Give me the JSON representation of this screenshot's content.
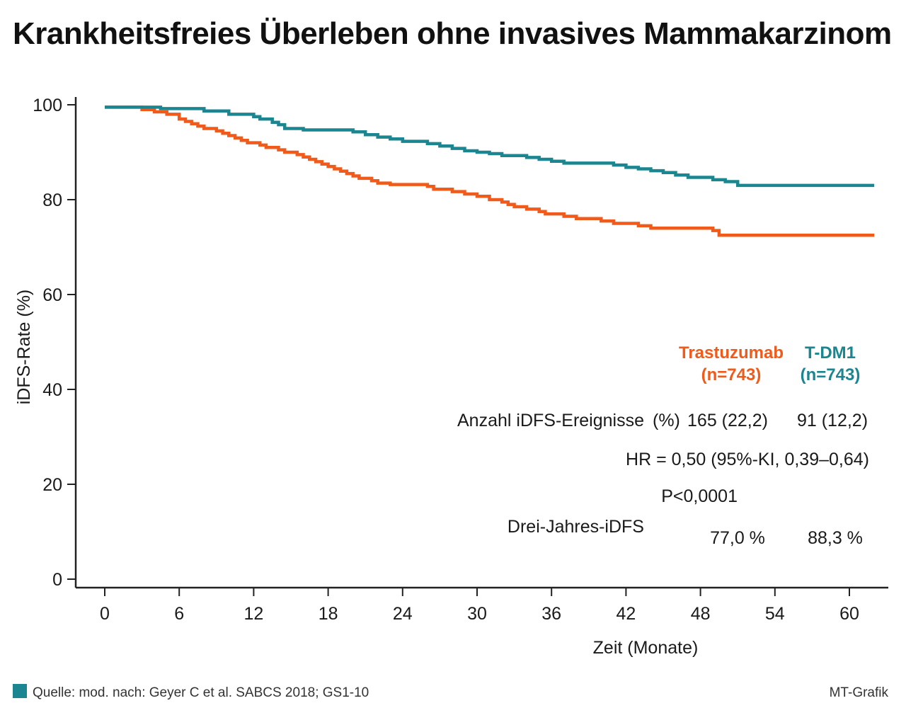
{
  "page": {
    "title": "Krankheitsfreies Überleben ohne invasives Mammakarzinom"
  },
  "chart_data": {
    "type": "line",
    "title": "Krankheitsfreies Überleben ohne invasives Mammakarzinom",
    "xlabel": "Zeit (Monate)",
    "ylabel": "iDFS-Rate (%)",
    "xlim": [
      0,
      62
    ],
    "ylim": [
      0,
      100
    ],
    "xticks": [
      0,
      6,
      12,
      18,
      24,
      30,
      36,
      42,
      48,
      54,
      60
    ],
    "yticks": [
      0,
      20,
      40,
      60,
      80,
      100
    ],
    "step": true,
    "series": [
      {
        "name": "Trastuzumab",
        "n_label": "(n=743)",
        "color": "#f05a1a",
        "points": [
          [
            0,
            99.5
          ],
          [
            3,
            99.5
          ],
          [
            3,
            99
          ],
          [
            4,
            99
          ],
          [
            4,
            98.5
          ],
          [
            5,
            98.5
          ],
          [
            5,
            98
          ],
          [
            6,
            98
          ],
          [
            6,
            97
          ],
          [
            6.5,
            97
          ],
          [
            6.5,
            96.5
          ],
          [
            7,
            96.5
          ],
          [
            7,
            96
          ],
          [
            7.5,
            96
          ],
          [
            7.5,
            95.5
          ],
          [
            8,
            95.5
          ],
          [
            8,
            95
          ],
          [
            9,
            95
          ],
          [
            9,
            94.5
          ],
          [
            9.5,
            94.5
          ],
          [
            9.5,
            94
          ],
          [
            10,
            94
          ],
          [
            10,
            93.5
          ],
          [
            10.5,
            93.5
          ],
          [
            10.5,
            93
          ],
          [
            11,
            93
          ],
          [
            11,
            92.5
          ],
          [
            11.5,
            92.5
          ],
          [
            11.5,
            92
          ],
          [
            12.5,
            92
          ],
          [
            12.5,
            91.5
          ],
          [
            13,
            91.5
          ],
          [
            13,
            91
          ],
          [
            14,
            91
          ],
          [
            14,
            90.5
          ],
          [
            14.5,
            90.5
          ],
          [
            14.5,
            90
          ],
          [
            15.5,
            90
          ],
          [
            15.5,
            89.5
          ],
          [
            16,
            89.5
          ],
          [
            16,
            89
          ],
          [
            16.5,
            89
          ],
          [
            16.5,
            88.5
          ],
          [
            17,
            88.5
          ],
          [
            17,
            88
          ],
          [
            17.5,
            88
          ],
          [
            17.5,
            87.5
          ],
          [
            18,
            87.5
          ],
          [
            18,
            87
          ],
          [
            18.5,
            87
          ],
          [
            18.5,
            86.5
          ],
          [
            19,
            86.5
          ],
          [
            19,
            86
          ],
          [
            19.5,
            86
          ],
          [
            19.5,
            85.5
          ],
          [
            20,
            85.5
          ],
          [
            20,
            85
          ],
          [
            20.5,
            85
          ],
          [
            20.5,
            84.5
          ],
          [
            21.5,
            84.5
          ],
          [
            21.5,
            84
          ],
          [
            22,
            84
          ],
          [
            22,
            83.5
          ],
          [
            23,
            83.5
          ],
          [
            23,
            83.2
          ],
          [
            26,
            83.2
          ],
          [
            26,
            82.8
          ],
          [
            26.5,
            82.8
          ],
          [
            26.5,
            82.2
          ],
          [
            28,
            82.2
          ],
          [
            28,
            81.7
          ],
          [
            29,
            81.7
          ],
          [
            29,
            81.2
          ],
          [
            30,
            81.2
          ],
          [
            30,
            80.7
          ],
          [
            31,
            80.7
          ],
          [
            31,
            80
          ],
          [
            32,
            80
          ],
          [
            32,
            79.5
          ],
          [
            32.5,
            79.5
          ],
          [
            32.5,
            79
          ],
          [
            33,
            79
          ],
          [
            33,
            78.5
          ],
          [
            34,
            78.5
          ],
          [
            34,
            78
          ],
          [
            35,
            78
          ],
          [
            35,
            77.5
          ],
          [
            35.5,
            77.5
          ],
          [
            35.5,
            77
          ],
          [
            37,
            77
          ],
          [
            37,
            76.5
          ],
          [
            38,
            76.5
          ],
          [
            38,
            76
          ],
          [
            40,
            76
          ],
          [
            40,
            75.5
          ],
          [
            41,
            75.5
          ],
          [
            41,
            75
          ],
          [
            43,
            75
          ],
          [
            43,
            74.5
          ],
          [
            44,
            74.5
          ],
          [
            44,
            74
          ],
          [
            49,
            74
          ],
          [
            49,
            73.5
          ],
          [
            49.5,
            73.5
          ],
          [
            49.5,
            72.5
          ],
          [
            62,
            72.5
          ]
        ]
      },
      {
        "name": "T-DM1",
        "n_label": "(n=743)",
        "color": "#1b8690",
        "points": [
          [
            0,
            99.5
          ],
          [
            4.5,
            99.5
          ],
          [
            4.5,
            99.2
          ],
          [
            8,
            99.2
          ],
          [
            8,
            98.7
          ],
          [
            10,
            98.7
          ],
          [
            10,
            98
          ],
          [
            12,
            98
          ],
          [
            12,
            97.5
          ],
          [
            12.5,
            97.5
          ],
          [
            12.5,
            97
          ],
          [
            13.5,
            97
          ],
          [
            13.5,
            96.3
          ],
          [
            14,
            96.3
          ],
          [
            14,
            95.8
          ],
          [
            14.5,
            95.8
          ],
          [
            14.5,
            95
          ],
          [
            16,
            95
          ],
          [
            16,
            94.7
          ],
          [
            20,
            94.7
          ],
          [
            20,
            94.3
          ],
          [
            21,
            94.3
          ],
          [
            21,
            93.7
          ],
          [
            22,
            93.7
          ],
          [
            22,
            93.2
          ],
          [
            23,
            93.2
          ],
          [
            23,
            92.8
          ],
          [
            24,
            92.8
          ],
          [
            24,
            92.3
          ],
          [
            26,
            92.3
          ],
          [
            26,
            91.8
          ],
          [
            27,
            91.8
          ],
          [
            27,
            91.3
          ],
          [
            28,
            91.3
          ],
          [
            28,
            90.8
          ],
          [
            29,
            90.8
          ],
          [
            29,
            90.3
          ],
          [
            30,
            90.3
          ],
          [
            30,
            90
          ],
          [
            31,
            90
          ],
          [
            31,
            89.7
          ],
          [
            32,
            89.7
          ],
          [
            32,
            89.3
          ],
          [
            34,
            89.3
          ],
          [
            34,
            88.9
          ],
          [
            35,
            88.9
          ],
          [
            35,
            88.5
          ],
          [
            36,
            88.5
          ],
          [
            36,
            88.1
          ],
          [
            37,
            88.1
          ],
          [
            37,
            87.7
          ],
          [
            41,
            87.7
          ],
          [
            41,
            87.3
          ],
          [
            42,
            87.3
          ],
          [
            42,
            86.8
          ],
          [
            43,
            86.8
          ],
          [
            43,
            86.5
          ],
          [
            44,
            86.5
          ],
          [
            44,
            86.1
          ],
          [
            45,
            86.1
          ],
          [
            45,
            85.7
          ],
          [
            46,
            85.7
          ],
          [
            46,
            85.2
          ],
          [
            47,
            85.2
          ],
          [
            47,
            84.7
          ],
          [
            49,
            84.7
          ],
          [
            49,
            84.2
          ],
          [
            50,
            84.2
          ],
          [
            50,
            83.8
          ],
          [
            51,
            83.8
          ],
          [
            51,
            83
          ],
          [
            62,
            83
          ]
        ]
      }
    ],
    "stats": {
      "events_label": "Anzahl iDFS-Ereignisse",
      "events_unit": "(%)",
      "events_trastuzumab": "165 (22,2)",
      "events_tdm1": "91 (12,2)",
      "hr": "HR = 0,50 (95%-KI, 0,39–0,64)",
      "p": "P<0,0001",
      "three_year_label": "Drei-Jahres-iDFS",
      "three_year_trastuzumab": "77,0 %",
      "three_year_tdm1": "88,3 %"
    }
  },
  "footer": {
    "source": "Quelle: mod. nach: Geyer C et al. SABCS 2018; GS1-10",
    "credit": "MT-Grafik",
    "square_color": "#1b8690"
  }
}
